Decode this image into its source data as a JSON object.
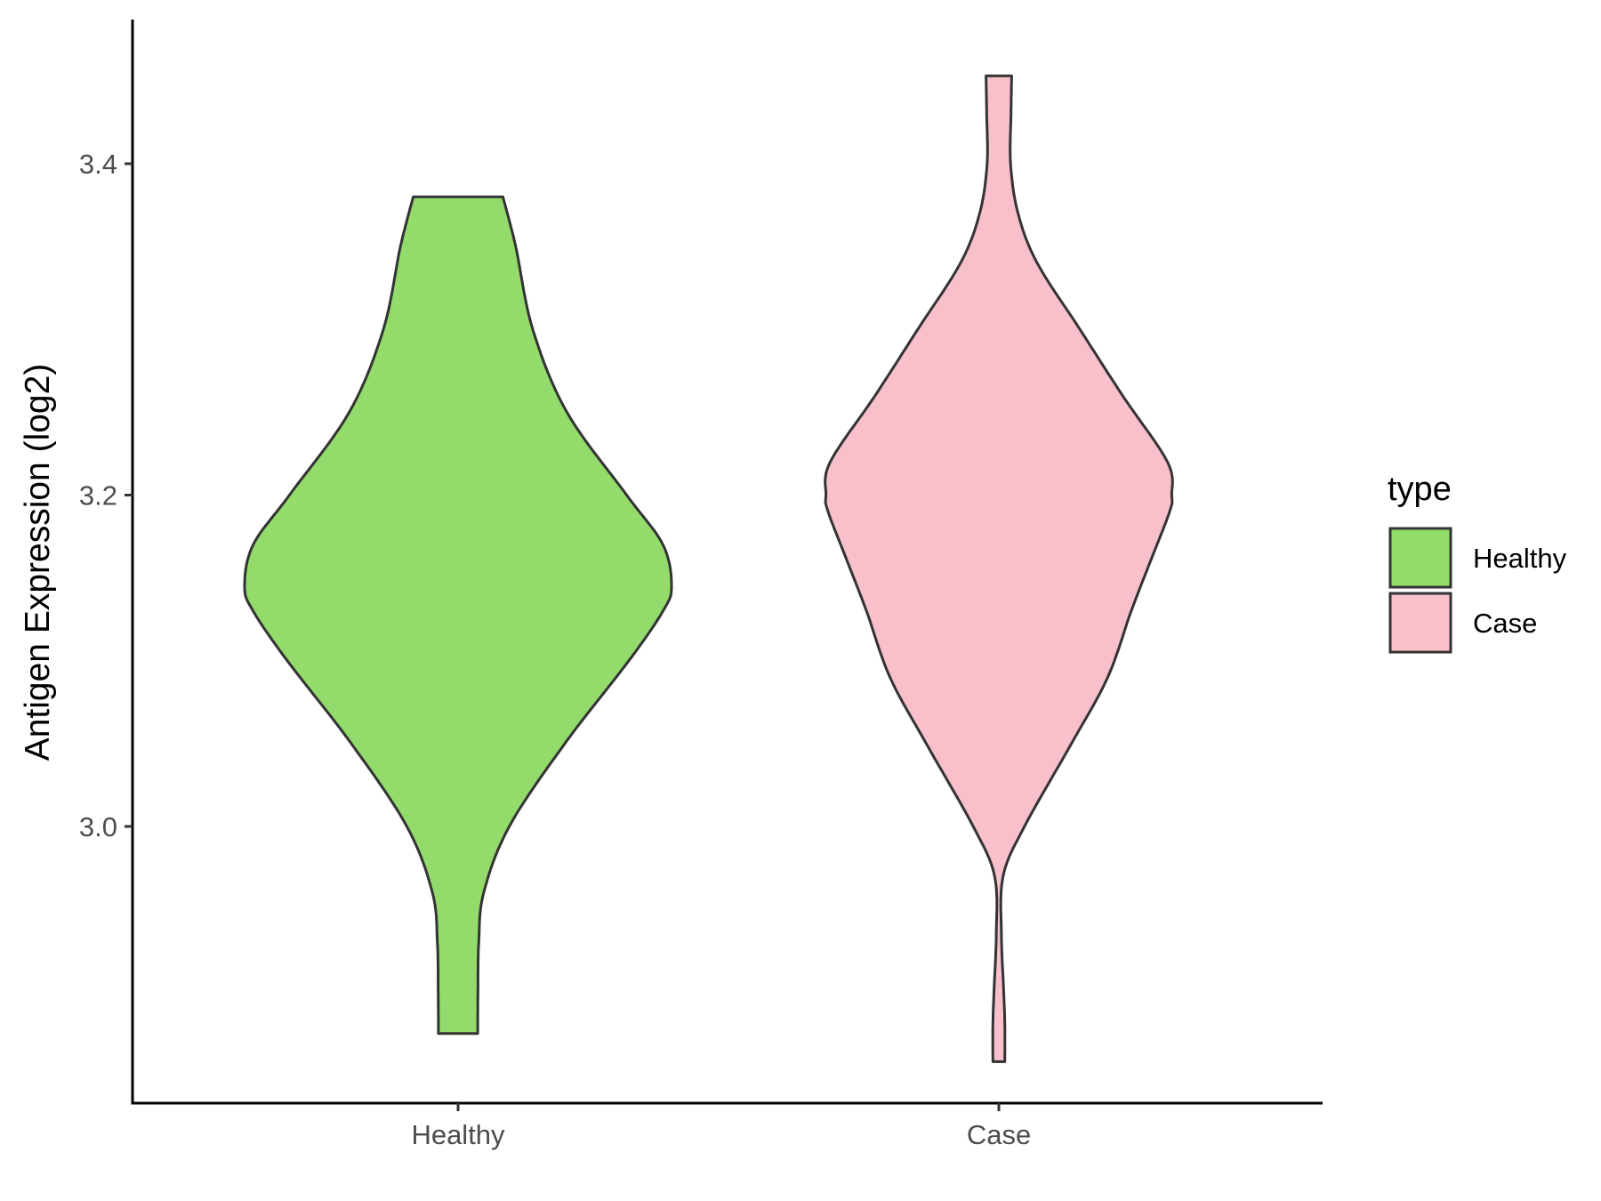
{
  "chart_data": {
    "type": "violin",
    "ylabel": "Antigen Expression (log2)",
    "xlabel": "",
    "categories": [
      "Healthy",
      "Case"
    ],
    "ylim": [
      2.833,
      3.487
    ],
    "yticks": [
      3.0,
      3.2,
      3.4
    ],
    "ytick_labels": [
      "3.0",
      "3.2",
      "3.4"
    ],
    "grid": false,
    "legend": {
      "title": "type",
      "position": "right",
      "entries": [
        {
          "label": "Healthy",
          "color": "#93dc6b"
        },
        {
          "label": "Case",
          "color": "#f8c0cb"
        }
      ]
    },
    "outline_color": "#333333",
    "series": [
      {
        "name": "Healthy",
        "color": "#93dc6b",
        "min": 2.875,
        "max": 3.38,
        "density_profile": [
          {
            "y": 2.875,
            "w": 0.092
          },
          {
            "y": 2.9,
            "w": 0.093
          },
          {
            "y": 2.93,
            "w": 0.097
          },
          {
            "y": 2.96,
            "w": 0.12
          },
          {
            "y": 3.0,
            "w": 0.24
          },
          {
            "y": 3.05,
            "w": 0.5
          },
          {
            "y": 3.1,
            "w": 0.8
          },
          {
            "y": 3.13,
            "w": 0.96
          },
          {
            "y": 3.145,
            "w": 1.0
          },
          {
            "y": 3.17,
            "w": 0.96
          },
          {
            "y": 3.2,
            "w": 0.79
          },
          {
            "y": 3.25,
            "w": 0.51
          },
          {
            "y": 3.3,
            "w": 0.35
          },
          {
            "y": 3.35,
            "w": 0.27
          },
          {
            "y": 3.38,
            "w": 0.21
          }
        ]
      },
      {
        "name": "Case",
        "color": "#f8c0cb",
        "min": 2.858,
        "max": 3.453,
        "density_profile": [
          {
            "y": 2.858,
            "w": 0.028
          },
          {
            "y": 2.88,
            "w": 0.028
          },
          {
            "y": 2.9,
            "w": 0.023
          },
          {
            "y": 2.935,
            "w": 0.012
          },
          {
            "y": 2.97,
            "w": 0.02
          },
          {
            "y": 3.0,
            "w": 0.12
          },
          {
            "y": 3.05,
            "w": 0.34
          },
          {
            "y": 3.09,
            "w": 0.51
          },
          {
            "y": 3.13,
            "w": 0.62
          },
          {
            "y": 3.16,
            "w": 0.71
          },
          {
            "y": 3.19,
            "w": 0.8
          },
          {
            "y": 3.2,
            "w": 0.81
          },
          {
            "y": 3.22,
            "w": 0.79
          },
          {
            "y": 3.26,
            "w": 0.58
          },
          {
            "y": 3.3,
            "w": 0.38
          },
          {
            "y": 3.34,
            "w": 0.18
          },
          {
            "y": 3.37,
            "w": 0.09
          },
          {
            "y": 3.4,
            "w": 0.055
          },
          {
            "y": 3.43,
            "w": 0.057
          },
          {
            "y": 3.453,
            "w": 0.06
          }
        ]
      }
    ]
  }
}
